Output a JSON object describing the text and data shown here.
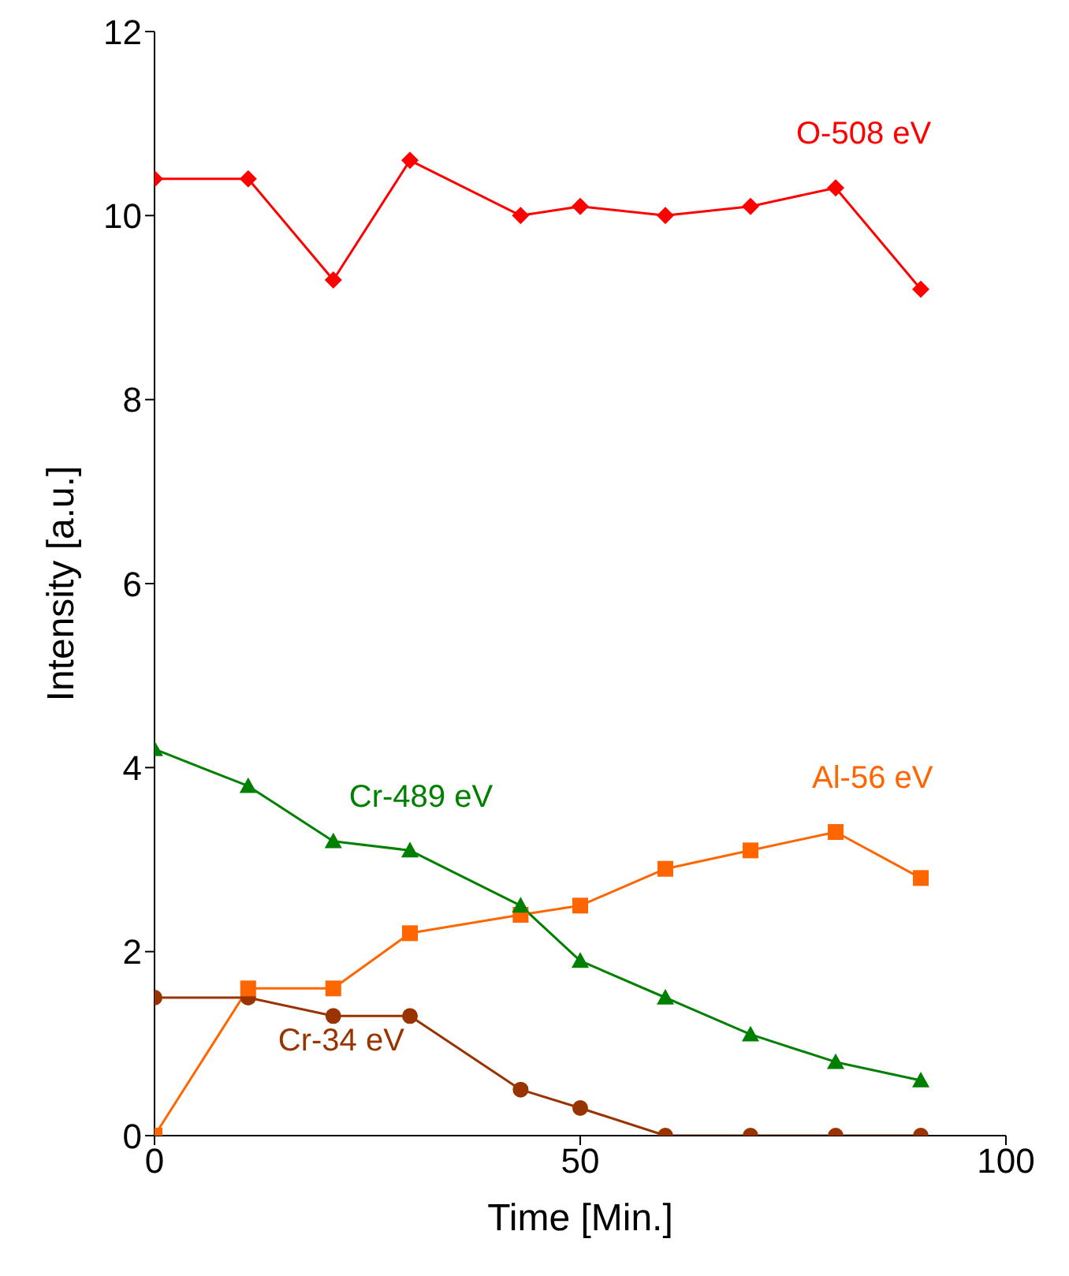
{
  "chart_data": {
    "type": "line",
    "xlabel": "Time [Min.]",
    "ylabel": "Intensity [a.u.]",
    "x": [
      0,
      11,
      21,
      30,
      43,
      50,
      60,
      70,
      80,
      90
    ],
    "series": [
      {
        "name": "O-508 eV",
        "color": "#ff0000",
        "marker": "diamond",
        "values": [
          10.4,
          10.4,
          9.3,
          10.6,
          10.0,
          10.1,
          10.0,
          10.1,
          10.3,
          9.2
        ]
      },
      {
        "name": "Cr-489 eV",
        "color": "#008000",
        "marker": "triangle",
        "values": [
          4.2,
          3.8,
          3.2,
          3.1,
          2.5,
          1.9,
          1.5,
          1.1,
          0.8,
          0.6
        ]
      },
      {
        "name": "Al-56 eV",
        "color": "#ff6600",
        "marker": "square",
        "values": [
          0.0,
          1.6,
          1.6,
          2.2,
          2.4,
          2.5,
          2.9,
          3.1,
          3.3,
          2.8
        ]
      },
      {
        "name": "Cr-34 eV",
        "color": "#993300",
        "marker": "circle",
        "values": [
          1.5,
          1.5,
          1.3,
          1.3,
          0.5,
          0.3,
          0.0,
          0.0,
          0.0,
          0.0
        ]
      }
    ],
    "xlim": [
      0,
      100
    ],
    "xticks": [
      0,
      50,
      100
    ],
    "ylim": [
      0,
      12
    ],
    "yticks": [
      0,
      2,
      4,
      6,
      8,
      10,
      12
    ],
    "grid": false,
    "legend": false
  }
}
